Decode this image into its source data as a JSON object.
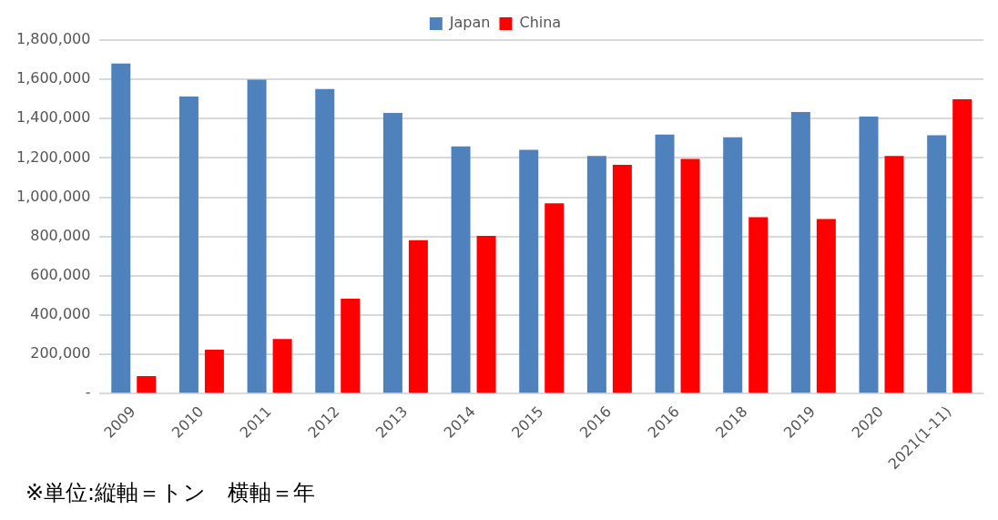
{
  "chart_data": {
    "type": "bar",
    "categories": [
      "2009",
      "2010",
      "2011",
      "2012",
      "2013",
      "2014",
      "2015",
      "2016",
      "2016",
      "2018",
      "2019",
      "2020",
      "2021(1-11)"
    ],
    "series": [
      {
        "name": "Japan",
        "color": "#4f81bd",
        "values": [
          1681000,
          1513000,
          1598000,
          1551000,
          1429000,
          1258000,
          1241000,
          1210000,
          1319000,
          1305000,
          1434000,
          1411000,
          1315000
        ]
      },
      {
        "name": "China",
        "color": "#ff0000",
        "values": [
          89000,
          223000,
          278000,
          483000,
          781000,
          803000,
          969000,
          1165000,
          1195000,
          898000,
          889000,
          1210000,
          1499000
        ]
      }
    ],
    "ylim": [
      0,
      1800000
    ],
    "yticks": [
      {
        "value": 0,
        "label": "-"
      },
      {
        "value": 200000,
        "label": "200,000"
      },
      {
        "value": 400000,
        "label": "400,000"
      },
      {
        "value": 600000,
        "label": "600,000"
      },
      {
        "value": 800000,
        "label": "800,000"
      },
      {
        "value": 1000000,
        "label": "1,000,000"
      },
      {
        "value": 1200000,
        "label": "1,200,000"
      },
      {
        "value": 1400000,
        "label": "1,400,000"
      },
      {
        "value": 1600000,
        "label": "1,600,000"
      },
      {
        "value": 1800000,
        "label": "1,800,000"
      }
    ],
    "grid": "y",
    "legend": "top",
    "annotations": [
      "※単位:縦軸＝トン　横軸＝年"
    ]
  }
}
